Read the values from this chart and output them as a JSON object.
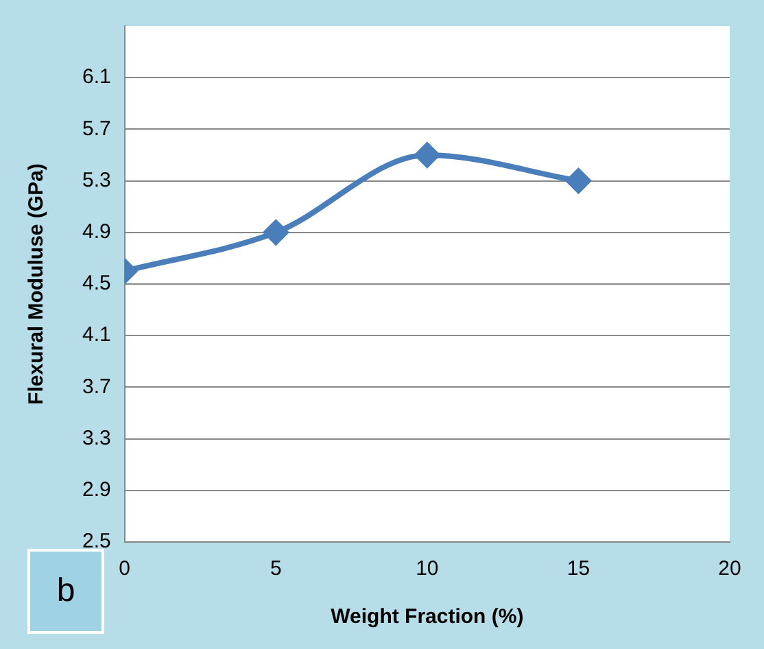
{
  "chart_data": {
    "type": "line",
    "xlabel": "Weight Fraction (%)",
    "ylabel": "Flexural Moduluse (GPa)",
    "x": [
      0,
      5,
      10,
      15
    ],
    "series": [
      {
        "color": "#4a7ebb",
        "values": [
          4.6,
          4.9,
          5.5,
          5.3
        ]
      }
    ],
    "xlim": [
      0,
      20
    ],
    "xticks": [
      0,
      5,
      10,
      15,
      20
    ],
    "ylim": [
      2.5,
      6.5
    ],
    "yticks": [
      2.5,
      2.9,
      3.3,
      3.7,
      4.1,
      4.5,
      4.9,
      5.3,
      5.7,
      6.1
    ],
    "grid": "y",
    "legend": false,
    "marker": "diamond",
    "line_style": "solid",
    "annotations": [
      "b"
    ]
  }
}
